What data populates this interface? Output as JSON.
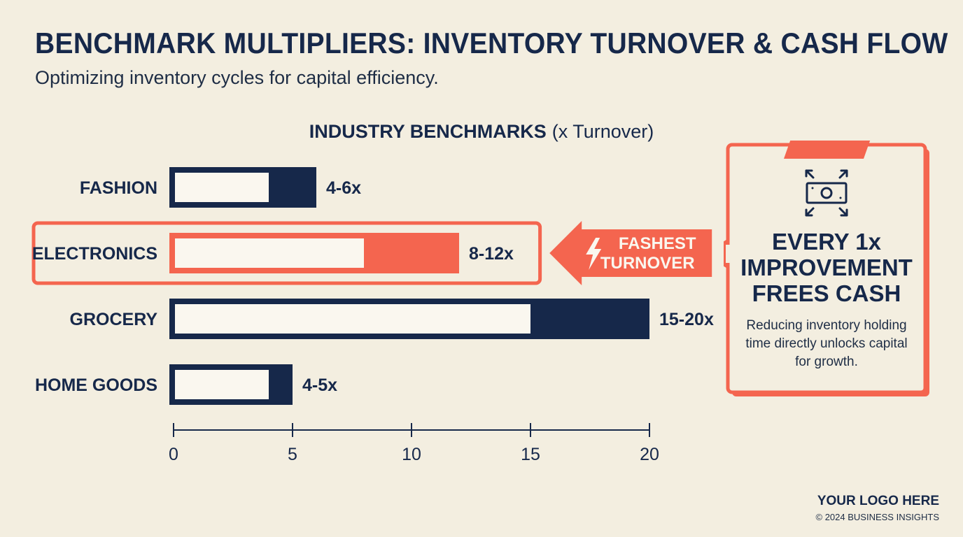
{
  "header": {
    "title": "BENCHMARK MULTIPLIERS: INVENTORY TURNOVER & CASH FLOW",
    "subtitle": "Optimizing inventory cycles for capital efficiency."
  },
  "chart_data": {
    "type": "bar",
    "orientation": "horizontal",
    "title": "INDUSTRY BENCHMARKS",
    "title_unit": "(x Turnover)",
    "categories": [
      "FASHION",
      "ELECTRONICS",
      "GROCERY",
      "HOME GOODS"
    ],
    "ranges": [
      [
        4,
        6
      ],
      [
        8,
        12
      ],
      [
        15,
        20
      ],
      [
        4,
        5
      ]
    ],
    "range_labels": [
      "4-6x",
      "8-12x",
      "15-20x",
      "4-5x"
    ],
    "highlight": "ELECTRONICS",
    "highlight_badge": [
      "FASHEST",
      "TURNOVER"
    ],
    "xlim": [
      0,
      20
    ],
    "xticks": [
      0,
      5,
      10,
      15,
      20
    ],
    "grid": false,
    "legend": "none"
  },
  "callout": {
    "icon": "cash-expand-icon",
    "headline": [
      "EVERY 1x",
      "IMPROVEMENT",
      "FREES CASH"
    ],
    "body": "Reducing inventory holding time directly unlocks capital for growth."
  },
  "footer": {
    "logo": "YOUR LOGO HERE",
    "copyright": "© 2024 BUSINESS INSIGHTS"
  },
  "colors": {
    "navy": "#16284a",
    "coral": "#f4654f",
    "background": "#f3eee0",
    "bar_fill": "#faf7ef"
  }
}
